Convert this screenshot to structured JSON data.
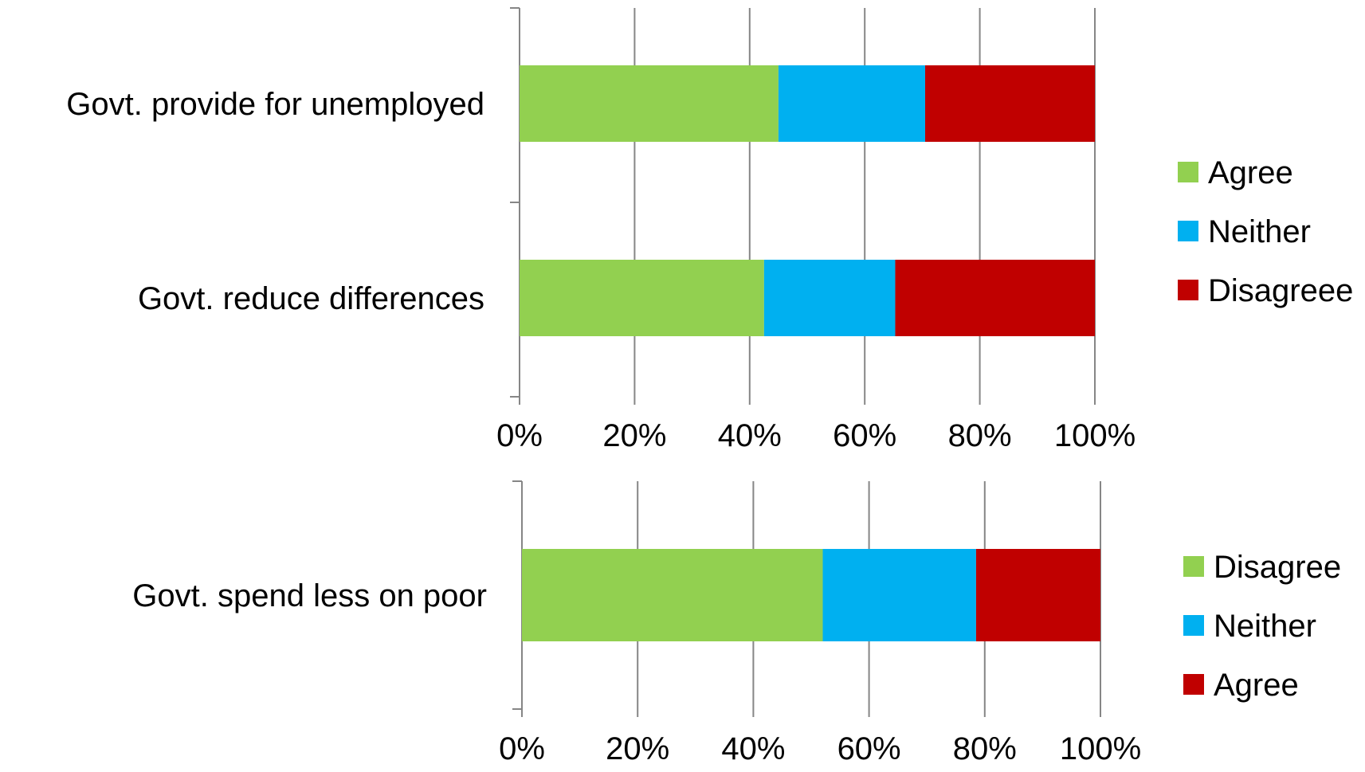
{
  "chart_data": [
    {
      "type": "bar",
      "orientation": "horizontal",
      "stacked": "percent",
      "categories": [
        "Govt. provide for unemployed",
        "Govt. reduce differences"
      ],
      "series": [
        {
          "name": "Agree",
          "color": "#92D050",
          "values": [
            45,
            42.5
          ]
        },
        {
          "name": "Neither",
          "color": "#00B0F0",
          "values": [
            25.5,
            22.8
          ]
        },
        {
          "name": "Disagreee",
          "color": "#C00000",
          "values": [
            29.5,
            34.7
          ]
        }
      ],
      "xlim": [
        0,
        100
      ],
      "x_ticks": [
        "0%",
        "20%",
        "40%",
        "60%",
        "80%",
        "100%"
      ],
      "grid": "vertical",
      "legend_position": "right"
    },
    {
      "type": "bar",
      "orientation": "horizontal",
      "stacked": "percent",
      "categories": [
        "Govt. spend less on poor"
      ],
      "series": [
        {
          "name": "Disagree",
          "color": "#92D050",
          "values": [
            52
          ]
        },
        {
          "name": "Neither",
          "color": "#00B0F0",
          "values": [
            26.5
          ]
        },
        {
          "name": "Agree",
          "color": "#C00000",
          "values": [
            21.5
          ]
        }
      ],
      "xlim": [
        0,
        100
      ],
      "x_ticks": [
        "0%",
        "20%",
        "40%",
        "60%",
        "80%",
        "100%"
      ],
      "grid": "vertical",
      "legend_position": "right"
    }
  ]
}
